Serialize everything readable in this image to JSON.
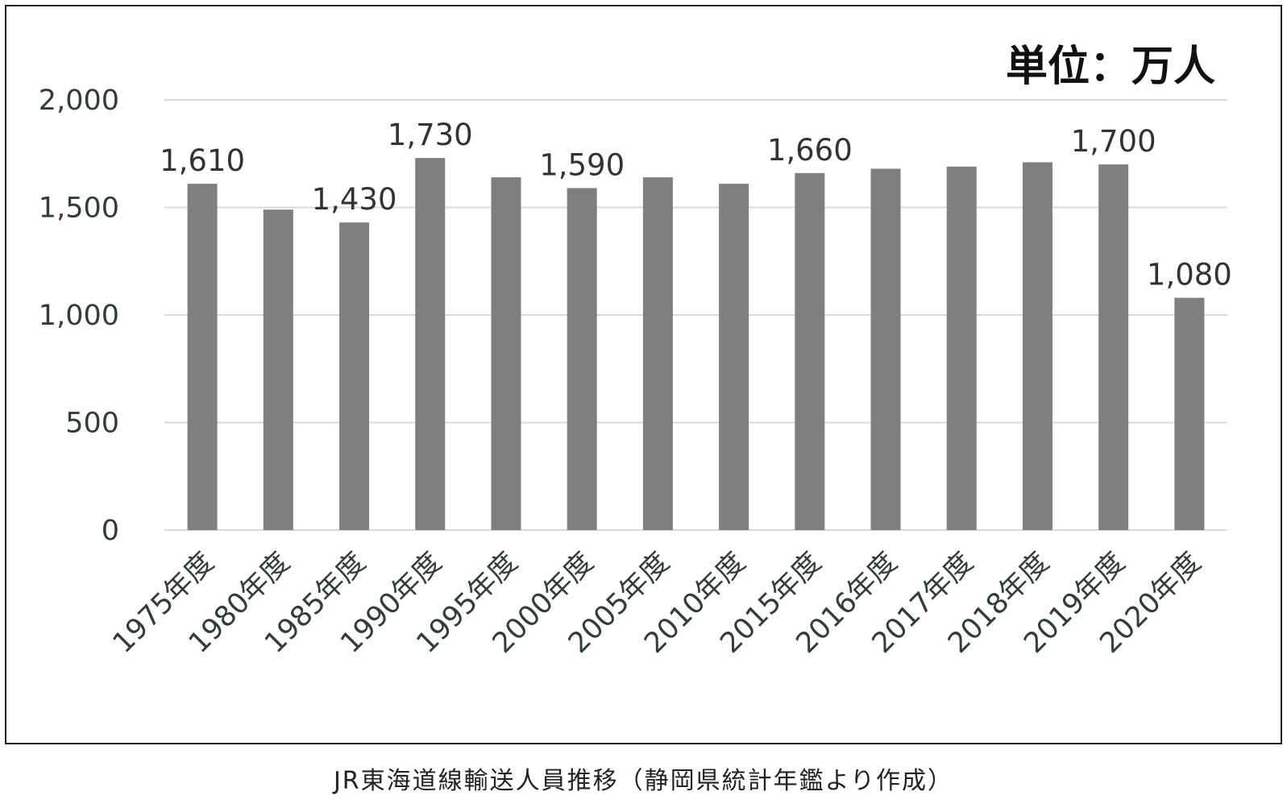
{
  "chart_data": {
    "type": "bar",
    "unit_label": "単位：万人",
    "caption": "JR東海道線輸送人員推移（静岡県統計年鑑より作成）",
    "categories": [
      "1975年度",
      "1980年度",
      "1985年度",
      "1990年度",
      "1995年度",
      "2000年度",
      "2005年度",
      "2010年度",
      "2015年度",
      "2016年度",
      "2017年度",
      "2018年度",
      "2019年度",
      "2020年度"
    ],
    "values": [
      1610,
      1490,
      1430,
      1730,
      1640,
      1590,
      1640,
      1610,
      1660,
      1680,
      1690,
      1710,
      1700,
      1080
    ],
    "data_labels": [
      "1,610",
      "",
      "1,430",
      "1,730",
      "",
      "1,590",
      "",
      "",
      "1,660",
      "",
      "",
      "",
      "1,700",
      "1,080"
    ],
    "yticks": [
      0,
      500,
      1000,
      1500,
      2000
    ],
    "ytick_labels": [
      "0",
      "500",
      "1,000",
      "1,500",
      "2,000"
    ],
    "ylim": [
      0,
      2000
    ],
    "grid": true,
    "legend": "none",
    "colors": {
      "bar": "#7f7f7f",
      "grid": "#d9d9d9",
      "frame": "#222222"
    }
  }
}
